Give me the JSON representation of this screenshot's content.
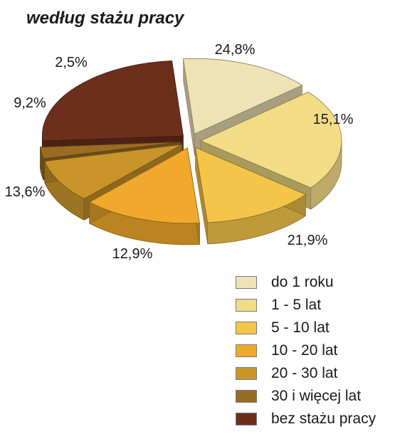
{
  "title": "według stażu pracy",
  "chart_data": {
    "type": "pie",
    "style": "exploded 3D pie",
    "categories": [
      "do 1 roku",
      "1 - 5 lat",
      "5 - 10 lat",
      "10 - 20 lat",
      "20 - 30 lat",
      "30 i więcej lat",
      "bez stażu pracy"
    ],
    "values": [
      15.1,
      21.9,
      12.9,
      13.6,
      9.2,
      2.5,
      24.8
    ],
    "labels": [
      "15,1%",
      "21,9%",
      "12,9%",
      "13,6%",
      "9,2%",
      "2,5%",
      "24,8%"
    ],
    "colors": [
      "#efe3b5",
      "#f2dc86",
      "#f5c54a",
      "#f0a92c",
      "#c9952a",
      "#9a6b22",
      "#6b2f1c"
    ],
    "legend_position": "bottom-right"
  }
}
